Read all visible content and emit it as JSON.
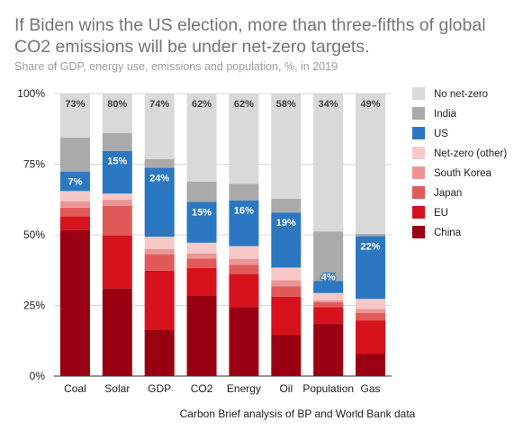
{
  "header": {
    "title": "If Biden wins the US election, more than three-fifths of global CO2 emissions will be under net-zero targets.",
    "subtitle": "Share of GDP, energy use, emissions and population, %, in 2019"
  },
  "footer": {
    "source": "Carbon Brief analysis of BP and World Bank data"
  },
  "colors": {
    "China": "#990011",
    "EU": "#d6121c",
    "Japan": "#e05a5a",
    "South Korea": "#ec9494",
    "Net-zero (other)": "#f6c8c8",
    "US": "#2b77c2",
    "India": "#aaaaaa",
    "No net-zero": "#d9d9d9"
  },
  "chart_data": {
    "type": "bar",
    "stacked": true,
    "categories": [
      "Coal",
      "Solar",
      "GDP",
      "CO2",
      "Energy",
      "Oil",
      "Population",
      "Gas"
    ],
    "yticks": [
      "0%",
      "25%",
      "50%",
      "75%",
      "100%"
    ],
    "ylim": [
      0,
      100
    ],
    "legend_position": "right",
    "series": [
      {
        "name": "China",
        "values": [
          51.7,
          31,
          16.5,
          28.6,
          24.4,
          14.5,
          18.5,
          7.8
        ]
      },
      {
        "name": "EU",
        "values": [
          4.8,
          18.8,
          20.8,
          9.7,
          11.7,
          13.6,
          5.9,
          11.9
        ]
      },
      {
        "name": "Japan",
        "values": [
          3.1,
          10.4,
          5.8,
          3.3,
          3.3,
          3.7,
          1.7,
          2.6
        ]
      },
      {
        "name": "South Korea",
        "values": [
          2.3,
          2.2,
          1.9,
          1.8,
          2.1,
          2.1,
          0.7,
          1.5
        ]
      },
      {
        "name": "Net-zero (other)",
        "values": [
          3.6,
          2.2,
          4.3,
          3.8,
          4.5,
          4.5,
          2.6,
          3.5
        ]
      },
      {
        "name": "US",
        "values": [
          6.9,
          15.1,
          24.4,
          14.5,
          16.2,
          19.5,
          4.3,
          22.2
        ]
      },
      {
        "name": "India",
        "values": [
          12,
          6.3,
          3.1,
          7.1,
          5.8,
          4.9,
          17.5,
          0.8
        ]
      },
      {
        "name": "No net-zero",
        "values": [
          15.6,
          14,
          23.2,
          31.2,
          32,
          37.2,
          48.8,
          49.7
        ]
      }
    ],
    "data_labels": [
      {
        "category": "Coal",
        "series": "No net-zero",
        "text": "73%"
      },
      {
        "category": "Solar",
        "series": "No net-zero",
        "text": "80%"
      },
      {
        "category": "GDP",
        "series": "No net-zero",
        "text": "74%"
      },
      {
        "category": "CO2",
        "series": "No net-zero",
        "text": "62%"
      },
      {
        "category": "Energy",
        "series": "No net-zero",
        "text": "62%"
      },
      {
        "category": "Oil",
        "series": "No net-zero",
        "text": "58%"
      },
      {
        "category": "Population",
        "series": "No net-zero",
        "text": "34%"
      },
      {
        "category": "Gas",
        "series": "No net-zero",
        "text": "49%"
      },
      {
        "category": "Coal",
        "series": "US",
        "text": "7%"
      },
      {
        "category": "Solar",
        "series": "US",
        "text": "15%"
      },
      {
        "category": "GDP",
        "series": "US",
        "text": "24%"
      },
      {
        "category": "CO2",
        "series": "US",
        "text": "15%"
      },
      {
        "category": "Energy",
        "series": "US",
        "text": "16%"
      },
      {
        "category": "Oil",
        "series": "US",
        "text": "19%"
      },
      {
        "category": "Population",
        "series": "US",
        "text": "4%"
      },
      {
        "category": "Gas",
        "series": "US",
        "text": "22%"
      }
    ],
    "legend": [
      "No net-zero",
      "India",
      "US",
      "Net-zero (other)",
      "South Korea",
      "Japan",
      "EU",
      "China"
    ]
  }
}
